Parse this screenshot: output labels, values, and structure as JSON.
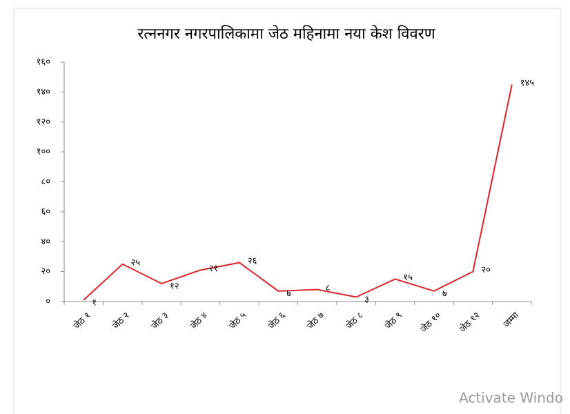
{
  "chart_data": {
    "type": "line",
    "title": "रत्ननगर नगरपालिकामा जेठ महिनामा नया केश विवरण",
    "categories": [
      "जेठ १",
      "जेठ २",
      "जेठ ३",
      "जेठ ४",
      "जेठ ५",
      "जेठ ६",
      "जेठ ७",
      "जेठ ८",
      "जेठ ९",
      "जेठ १०",
      "जेठ १२",
      "जम्मा"
    ],
    "series": [
      {
        "name": "नया केश",
        "color": "#d9242b",
        "values": [
          1,
          25,
          12,
          21,
          26,
          7,
          8,
          3,
          15,
          7,
          20,
          145
        ],
        "value_labels": [
          "१",
          "२५",
          "१२",
          "२१",
          "२६",
          "७",
          "८",
          "३",
          "१५",
          "७",
          "२०",
          "१४५"
        ]
      }
    ],
    "ylim": [
      0,
      160
    ],
    "yticks": [
      {
        "value": 0,
        "label": "०"
      },
      {
        "value": 20,
        "label": "२०"
      },
      {
        "value": 40,
        "label": "४०"
      },
      {
        "value": 60,
        "label": "६०"
      },
      {
        "value": 80,
        "label": "८०"
      },
      {
        "value": 100,
        "label": "१००"
      },
      {
        "value": 120,
        "label": "१२०"
      },
      {
        "value": 140,
        "label": "१४०"
      },
      {
        "value": 160,
        "label": "१६०"
      }
    ],
    "grid": false
  },
  "watermark": "Activate Windo"
}
